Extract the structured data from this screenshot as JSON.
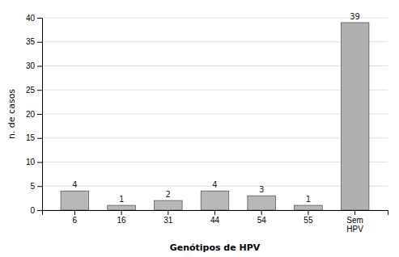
{
  "chart_data": {
    "type": "bar",
    "categories": [
      "6",
      "16",
      "31",
      "44",
      "54",
      "55",
      "Sem\nHPV"
    ],
    "values": [
      4,
      1,
      2,
      4,
      3,
      1,
      39
    ],
    "colors": [
      "#b8b8b8",
      "#b8b8b8",
      "#b8b8b8",
      "#b8b8b8",
      "#b8b8b8",
      "#b8b8b8",
      "#b0b0b0"
    ],
    "xlabel": "Genótipos de HPV",
    "ylabel": "n. de casos",
    "ylim": [
      0,
      40
    ],
    "yticks": [
      0,
      5,
      10,
      15,
      20,
      25,
      30,
      35,
      40
    ],
    "grid": true,
    "data_labels": true
  }
}
